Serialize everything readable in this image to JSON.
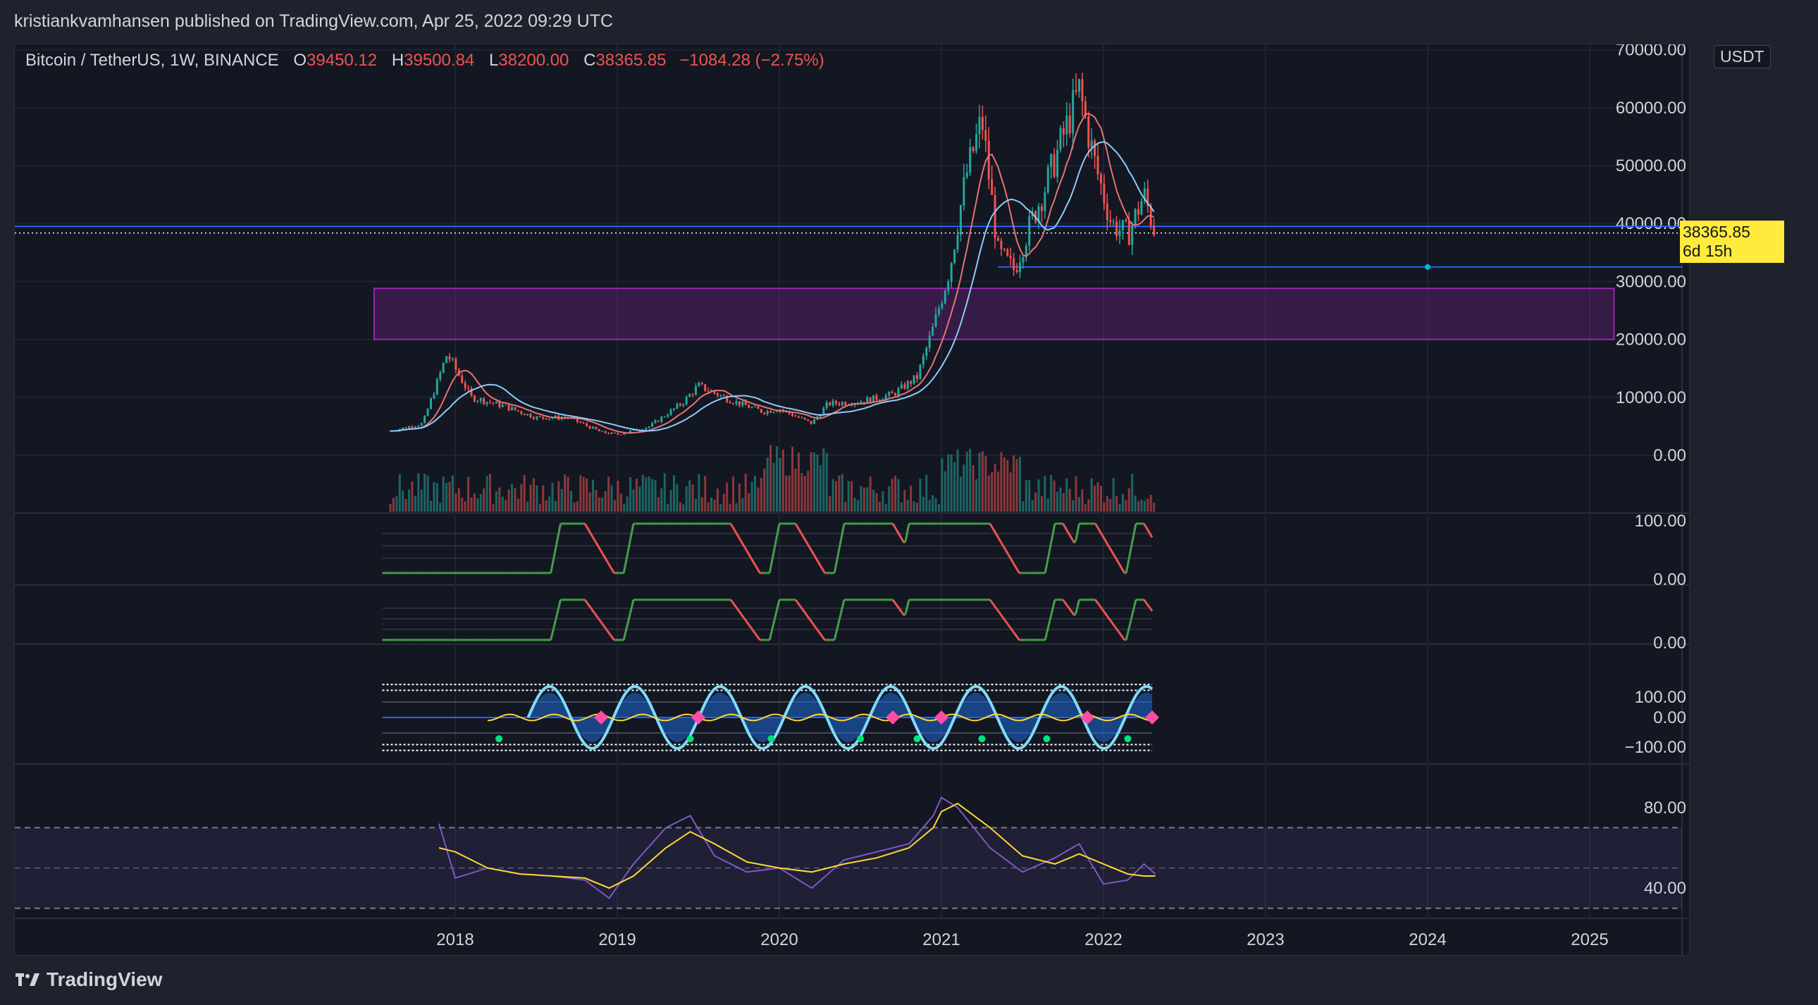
{
  "header": {
    "publisher_line": "kristiankvamhansen published on TradingView.com, Apr 25, 2022 09:29 UTC"
  },
  "legend": {
    "symbol": "Bitcoin / TetherUS, 1W, BINANCE",
    "open_label": "O",
    "open": "39450.12",
    "high_label": "H",
    "high": "39500.84",
    "low_label": "L",
    "low": "38200.00",
    "close_label": "C",
    "close": "38365.85",
    "change": "−1084.28 (−2.75%)"
  },
  "price_tag": {
    "price": "38365.85",
    "countdown": "6d 15h"
  },
  "currency_badge": "USDT",
  "footer": {
    "brand": "TradingView"
  },
  "colors": {
    "up": "#26a69a",
    "down": "#ef5350",
    "ma": "#e57373",
    "ma2": "#90caf9",
    "zone": "#9c27b0",
    "hline": "#2962ff",
    "rsi": "#7e57c2",
    "signal": "#fdd835"
  },
  "chart_data": [
    {
      "type": "line",
      "name": "price",
      "x": [
        2017.6,
        2017.8,
        2017.95,
        2018.1,
        2018.3,
        2018.5,
        2018.7,
        2018.9,
        2019.0,
        2019.2,
        2019.4,
        2019.5,
        2019.7,
        2019.9,
        2020.0,
        2020.2,
        2020.3,
        2020.5,
        2020.7,
        2020.85,
        2020.95,
        2021.05,
        2021.15,
        2021.25,
        2021.35,
        2021.45,
        2021.55,
        2021.65,
        2021.75,
        2021.85,
        2021.95,
        2022.05,
        2022.15,
        2022.25,
        2022.32
      ],
      "y": [
        4200,
        5500,
        17500,
        10000,
        8500,
        6500,
        6500,
        4000,
        3600,
        5000,
        9000,
        12000,
        9500,
        7500,
        8000,
        5500,
        8900,
        9300,
        10500,
        13500,
        22000,
        32000,
        48000,
        58000,
        35000,
        32000,
        40000,
        47000,
        55000,
        63000,
        50000,
        40000,
        38000,
        45000,
        38365.85
      ],
      "ylim": [
        -5000,
        70000
      ],
      "x_tick_labels": [
        "2018",
        "2019",
        "2020",
        "2021",
        "2022",
        "2023",
        "2024",
        "2025"
      ],
      "y_tick_labels": [
        "70000.00",
        "60000.00",
        "50000.00",
        "40000.00",
        "30000.00",
        "20000.00",
        "10000.00",
        "0.00"
      ],
      "annotations": {
        "zone_low": 20000,
        "zone_high": 28800,
        "zone_x": [
          2017.5,
          2025.15
        ],
        "hline": 32500,
        "hline_x_start": 2021.35,
        "marker_x": 2024.0,
        "upper_line": 39500
      }
    },
    {
      "type": "line",
      "name": "stoch-1",
      "y_tick_labels": [
        "100.00",
        "0.00"
      ],
      "ylim": [
        0,
        100
      ]
    },
    {
      "type": "line",
      "name": "stoch-2",
      "y_tick_labels": [
        "0.00"
      ],
      "ylim": [
        0,
        100
      ]
    },
    {
      "type": "line",
      "name": "oscillator",
      "y_tick_labels": [
        "100.00",
        "0.00",
        "−100.00"
      ],
      "ylim": [
        -100,
        100
      ]
    },
    {
      "type": "line",
      "name": "rsi",
      "x": [
        2017.9,
        2018.0,
        2018.2,
        2018.4,
        2018.6,
        2018.8,
        2018.95,
        2019.1,
        2019.3,
        2019.45,
        2019.6,
        2019.8,
        2020.0,
        2020.2,
        2020.4,
        2020.6,
        2020.8,
        2020.95,
        2021.0,
        2021.1,
        2021.3,
        2021.5,
        2021.7,
        2021.85,
        2022.0,
        2022.15,
        2022.25,
        2022.32
      ],
      "y": [
        72,
        45,
        50,
        47,
        46,
        44,
        35,
        52,
        70,
        76,
        56,
        48,
        50,
        40,
        54,
        58,
        62,
        76,
        85,
        80,
        60,
        48,
        55,
        62,
        42,
        44,
        52,
        47
      ],
      "signal": [
        60,
        58,
        50,
        47,
        46,
        45,
        40,
        46,
        60,
        68,
        62,
        53,
        50,
        48,
        52,
        55,
        60,
        70,
        78,
        82,
        70,
        56,
        52,
        57,
        52,
        47,
        46,
        46
      ],
      "ylim": [
        25,
        95
      ],
      "y_tick_labels": [
        "80.00",
        "40.00"
      ]
    }
  ]
}
